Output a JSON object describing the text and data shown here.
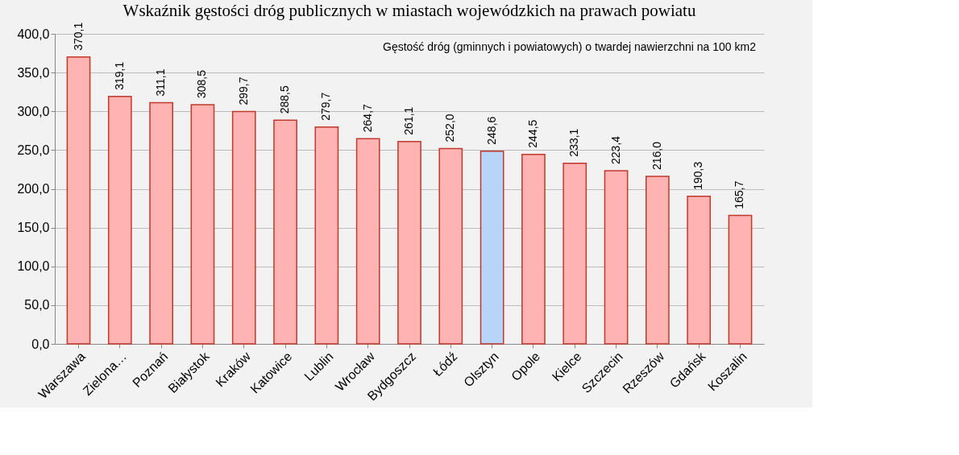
{
  "chart_data": {
    "type": "bar",
    "title": "Wskaźnik gęstości dróg publicznych w miastach wojewódzkich na prawach powiatu",
    "annotations": [
      "Gęstość dróg (gminnych i powiatowych) o twardej nawierzchni na 100 km2"
    ],
    "categories": [
      "Warszawa",
      "Zielona…",
      "Poznań",
      "Białystok",
      "Kraków",
      "Katowice",
      "Lublin",
      "Wrocław",
      "Bydgoszcz",
      "Łódź",
      "Olsztyn",
      "Opole",
      "Kielce",
      "Szczecin",
      "Rzeszów",
      "Gdańsk",
      "Koszalin"
    ],
    "values": [
      370.1,
      319.1,
      311.1,
      308.5,
      299.7,
      288.5,
      279.7,
      264.7,
      261.1,
      252.0,
      248.6,
      244.5,
      233.1,
      223.4,
      216.0,
      190.3,
      165.7
    ],
    "value_labels": [
      "370,1",
      "319,1",
      "311,1",
      "308,5",
      "299,7",
      "288,5",
      "279,7",
      "264,7",
      "261,1",
      "252,0",
      "248,6",
      "244,5",
      "233,1",
      "223,4",
      "216,0",
      "190,3",
      "165,7"
    ],
    "colors": [
      "#ffb3b3",
      "#ffb3b3",
      "#ffb3b3",
      "#ffb3b3",
      "#ffb3b3",
      "#ffb3b3",
      "#ffb3b3",
      "#ffb3b3",
      "#ffb3b3",
      "#ffb3b3",
      "#b8d4f8",
      "#ffb3b3",
      "#ffb3b3",
      "#ffb3b3",
      "#ffb3b3",
      "#ffb3b3",
      "#ffb3b3"
    ],
    "ylim": [
      0,
      400
    ],
    "yticks": [
      {
        "value": 0,
        "label": "0,0"
      },
      {
        "value": 50,
        "label": "50,0"
      },
      {
        "value": 100,
        "label": "100,0"
      },
      {
        "value": 150,
        "label": "150,0"
      },
      {
        "value": 200,
        "label": "200,0"
      },
      {
        "value": 250,
        "label": "250,0"
      },
      {
        "value": 300,
        "label": "300,0"
      },
      {
        "value": 350,
        "label": "350,0"
      },
      {
        "value": 400,
        "label": "400,0"
      }
    ],
    "grid": "y"
  }
}
